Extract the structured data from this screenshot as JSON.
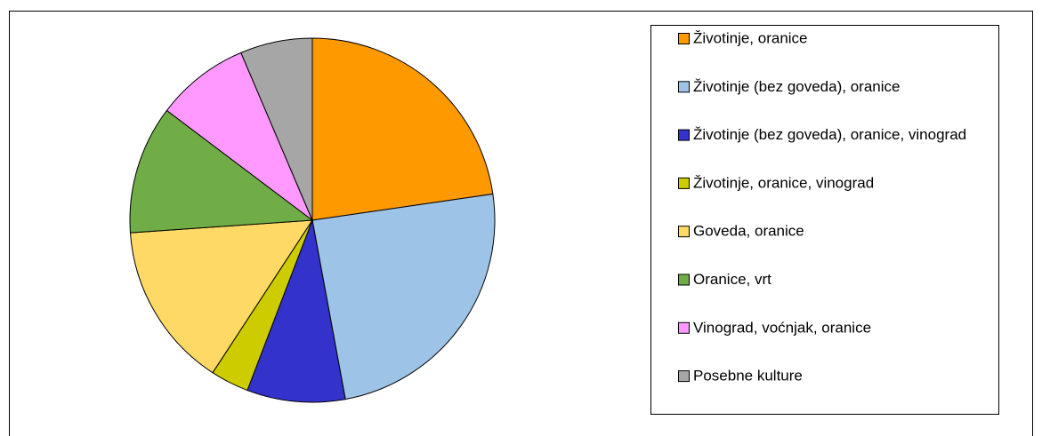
{
  "chart_data": {
    "type": "pie",
    "categories": [
      "Životinje, oranice",
      "Životinje (bez goveda), oranice",
      "Životinje (bez goveda), oranice, vinograd",
      "Životinje, oranice, vinograd",
      "Goveda, oranice",
      "Oranice, vrt",
      "Vinograd, voćnjak, oranice",
      "Posebne kulture"
    ],
    "values": [
      22.7,
      24.4,
      8.7,
      3.4,
      14.7,
      11.4,
      8.3,
      6.4
    ],
    "colors": [
      "#ff9900",
      "#9dc3e6",
      "#3333cc",
      "#cccc00",
      "#ffd966",
      "#70ad47",
      "#ff99ff",
      "#a6a6a6"
    ],
    "legend": "right"
  }
}
